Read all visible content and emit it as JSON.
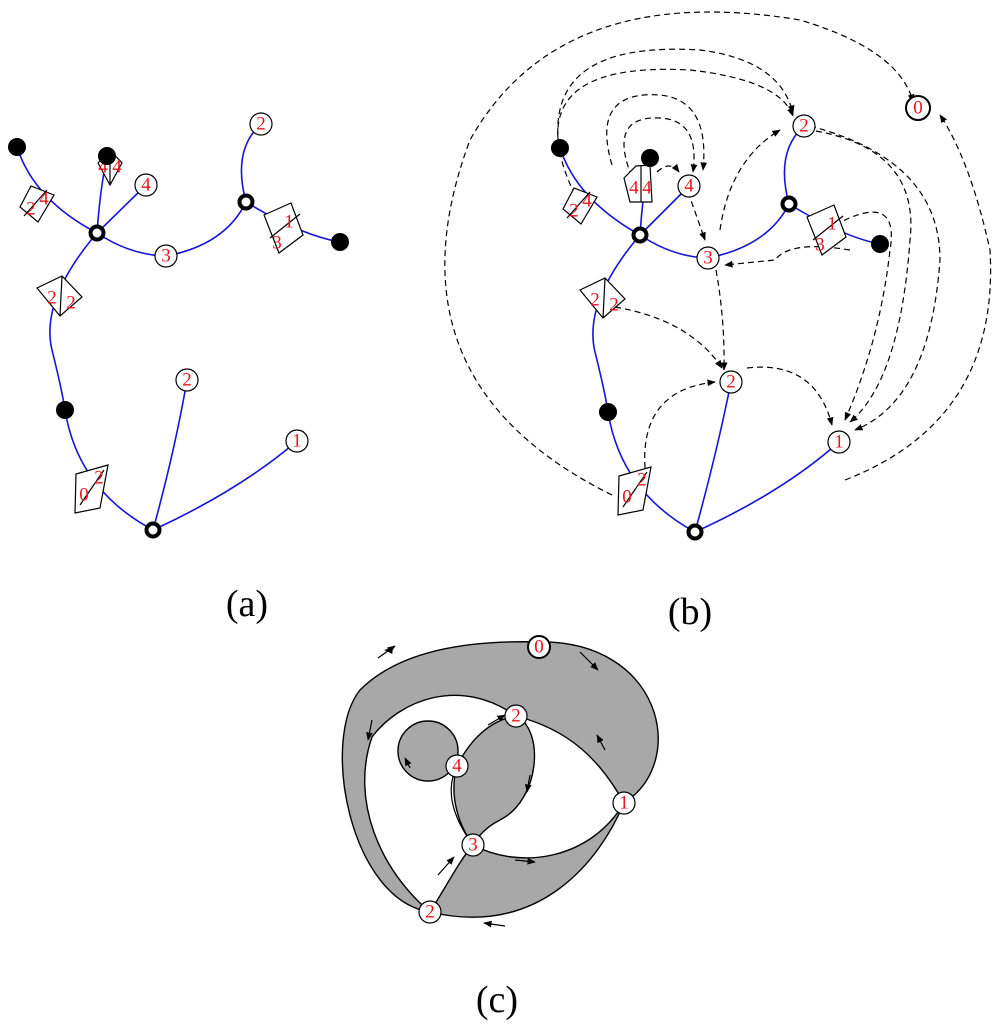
{
  "figure": {
    "panel_a": {
      "caption": "(a)",
      "node_labels": [
        "2",
        "4",
        "3",
        "2",
        "1"
      ],
      "diamond_labels": [
        [
          "2",
          "4"
        ],
        [
          "4",
          "4"
        ],
        [
          "1",
          "3"
        ],
        [
          "2",
          "2"
        ],
        [
          "0",
          "2"
        ]
      ]
    },
    "panel_b": {
      "caption": "(b)",
      "node_labels": [
        "0",
        "2",
        "4",
        "3",
        "2",
        "1"
      ],
      "diamond_labels": [
        [
          "2",
          "4"
        ],
        [
          "4",
          "4"
        ],
        [
          "1",
          "3"
        ],
        [
          "2",
          "2"
        ],
        [
          "0",
          "2"
        ]
      ]
    },
    "panel_c": {
      "caption": "(c)",
      "node_labels": [
        "0",
        "2",
        "4",
        "1",
        "3",
        "2"
      ]
    }
  },
  "colors": {
    "edge": "#1515d6",
    "label": "#e8141c",
    "face_fill": "#a8a8a8"
  }
}
